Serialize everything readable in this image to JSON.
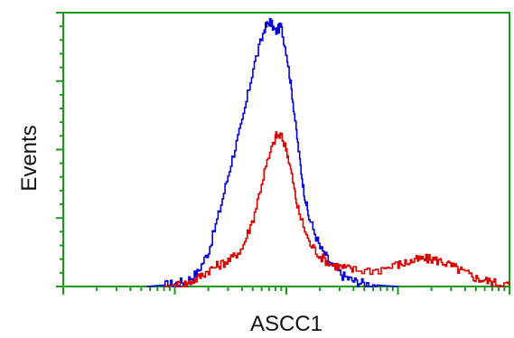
{
  "chart_data": {
    "type": "line",
    "xlabel": "ASCC1",
    "ylabel": "Events",
    "x_scale": "log",
    "x_decades": 4,
    "xlim": [
      0,
      4
    ],
    "ylim": [
      0,
      1
    ],
    "grid": false,
    "axis_color": "#1a9a1a",
    "series": [
      {
        "color": "#0000dd",
        "x": [
          0.75,
          0.9,
          1.0,
          1.1,
          1.2,
          1.3,
          1.4,
          1.5,
          1.6,
          1.7,
          1.8,
          1.85,
          1.9,
          1.95,
          2.0,
          2.05,
          2.1,
          2.15,
          2.2,
          2.3,
          2.4,
          2.5,
          2.6,
          2.7,
          2.85,
          3.0
        ],
        "y": [
          0.0,
          0.005,
          0.01,
          0.02,
          0.05,
          0.13,
          0.28,
          0.45,
          0.6,
          0.8,
          0.94,
          0.97,
          0.93,
          0.95,
          0.85,
          0.7,
          0.52,
          0.36,
          0.25,
          0.14,
          0.08,
          0.04,
          0.02,
          0.01,
          0.003,
          0.0
        ]
      },
      {
        "color": "#dd0000",
        "x": [
          0.9,
          1.0,
          1.1,
          1.2,
          1.3,
          1.4,
          1.5,
          1.6,
          1.7,
          1.8,
          1.9,
          1.95,
          2.0,
          2.05,
          2.1,
          2.2,
          2.3,
          2.4,
          2.5,
          2.6,
          2.8,
          3.0,
          3.1,
          3.2,
          3.3,
          3.4,
          3.5,
          3.6,
          3.7,
          3.8,
          3.9,
          4.0
        ],
        "y": [
          0.0,
          0.005,
          0.01,
          0.03,
          0.06,
          0.08,
          0.1,
          0.14,
          0.25,
          0.42,
          0.55,
          0.55,
          0.5,
          0.4,
          0.28,
          0.16,
          0.11,
          0.08,
          0.07,
          0.06,
          0.06,
          0.08,
          0.09,
          0.1,
          0.1,
          0.09,
          0.07,
          0.05,
          0.03,
          0.02,
          0.01,
          0.005
        ]
      }
    ]
  }
}
